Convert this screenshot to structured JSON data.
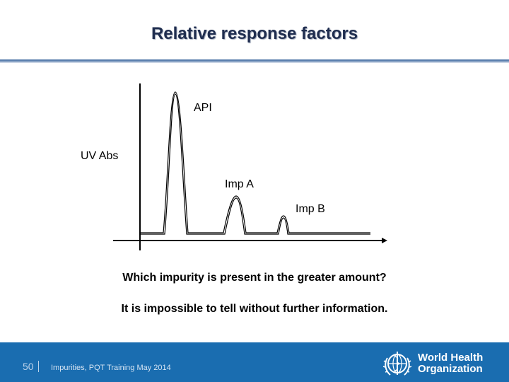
{
  "slide": {
    "title": "Relative response factors",
    "question": "Which impurity is present in the greater amount?",
    "answer": "It is impossible to tell without further information."
  },
  "diagram": {
    "axis_label": "UV Abs",
    "peaks": [
      {
        "name": "API"
      },
      {
        "name": "Imp A"
      },
      {
        "name": "Imp B"
      }
    ]
  },
  "footer": {
    "page_number": "50",
    "text": "Impurities,  PQT Training May 2014",
    "logo_line1": "World Health",
    "logo_line2": "Organization",
    "logo_icon": "who-emblem-icon"
  },
  "colors": {
    "title": "#1f2d4f",
    "footer_bg": "#1a6db0"
  }
}
